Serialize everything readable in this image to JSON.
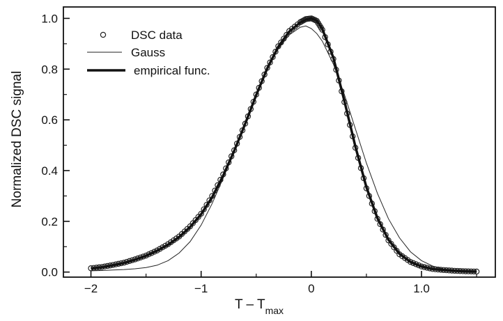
{
  "chart_data": {
    "type": "line",
    "title": "",
    "xlabel": "T – T",
    "xlabel_sub": "max",
    "ylabel": "Normalized DSC signal",
    "xlim": [
      -2.25,
      1.67
    ],
    "ylim": [
      -0.02,
      1.045
    ],
    "x_ticks": [
      -2,
      -1,
      0,
      1
    ],
    "x_tick_labels": [
      "−2",
      "−1",
      "0",
      "1.0"
    ],
    "y_ticks": [
      0.0,
      0.2,
      0.4,
      0.6,
      0.8,
      1.0
    ],
    "y_tick_labels": [
      "0.0",
      "0.2",
      "0.4",
      "0.6",
      "0.8",
      "1.0"
    ],
    "grid": false,
    "legend_position": "top-left",
    "series": [
      {
        "name": "DSC data",
        "style": "open-circle-markers",
        "color": "#222222",
        "x": [
          -2.0,
          -1.9,
          -1.8,
          -1.7,
          -1.6,
          -1.5,
          -1.4,
          -1.3,
          -1.2,
          -1.1,
          -1.0,
          -0.9,
          -0.8,
          -0.7,
          -0.6,
          -0.5,
          -0.4,
          -0.3,
          -0.2,
          -0.1,
          -0.05,
          0.0,
          0.05,
          0.1,
          0.2,
          0.3,
          0.4,
          0.5,
          0.6,
          0.7,
          0.8,
          0.9,
          1.0,
          1.1,
          1.2,
          1.3,
          1.4,
          1.5
        ],
        "y": [
          0.015,
          0.02,
          0.028,
          0.037,
          0.05,
          0.065,
          0.085,
          0.11,
          0.14,
          0.18,
          0.23,
          0.3,
          0.385,
          0.48,
          0.585,
          0.7,
          0.805,
          0.89,
          0.95,
          0.985,
          0.997,
          1.0,
          0.99,
          0.955,
          0.84,
          0.67,
          0.49,
          0.33,
          0.21,
          0.125,
          0.07,
          0.04,
          0.022,
          0.012,
          0.008,
          0.005,
          0.003,
          0.002
        ]
      },
      {
        "name": "Gauss",
        "style": "thin-line",
        "color": "#222222",
        "x": [
          -2.0,
          -1.9,
          -1.8,
          -1.7,
          -1.6,
          -1.5,
          -1.4,
          -1.3,
          -1.2,
          -1.1,
          -1.0,
          -0.9,
          -0.8,
          -0.7,
          -0.6,
          -0.5,
          -0.4,
          -0.3,
          -0.2,
          -0.1,
          -0.05,
          0.0,
          0.05,
          0.1,
          0.2,
          0.3,
          0.4,
          0.5,
          0.6,
          0.7,
          0.8,
          0.9,
          1.0,
          1.1,
          1.2,
          1.3,
          1.4,
          1.5
        ],
        "y": [
          0.005,
          0.006,
          0.008,
          0.01,
          0.013,
          0.018,
          0.027,
          0.045,
          0.075,
          0.12,
          0.185,
          0.27,
          0.37,
          0.48,
          0.59,
          0.7,
          0.8,
          0.88,
          0.935,
          0.965,
          0.97,
          0.96,
          0.94,
          0.91,
          0.82,
          0.7,
          0.565,
          0.43,
          0.31,
          0.21,
          0.135,
          0.08,
          0.045,
          0.024,
          0.012,
          0.006,
          0.003,
          0.002
        ]
      },
      {
        "name": "empirical func.",
        "style": "thick-line",
        "color": "#111111",
        "x": [
          -2.0,
          -1.9,
          -1.8,
          -1.7,
          -1.6,
          -1.5,
          -1.4,
          -1.3,
          -1.2,
          -1.1,
          -1.0,
          -0.9,
          -0.8,
          -0.7,
          -0.6,
          -0.5,
          -0.4,
          -0.3,
          -0.2,
          -0.1,
          -0.05,
          0.0,
          0.05,
          0.1,
          0.2,
          0.3,
          0.4,
          0.5,
          0.6,
          0.7,
          0.8,
          0.9,
          1.0,
          1.1,
          1.2,
          1.3,
          1.4,
          1.5
        ],
        "y": [
          0.014,
          0.019,
          0.027,
          0.036,
          0.049,
          0.064,
          0.084,
          0.108,
          0.138,
          0.178,
          0.228,
          0.295,
          0.38,
          0.478,
          0.585,
          0.698,
          0.803,
          0.888,
          0.948,
          0.984,
          0.996,
          1.0,
          0.991,
          0.958,
          0.845,
          0.675,
          0.495,
          0.335,
          0.212,
          0.127,
          0.072,
          0.04,
          0.022,
          0.012,
          0.008,
          0.005,
          0.003,
          0.002
        ]
      }
    ]
  }
}
